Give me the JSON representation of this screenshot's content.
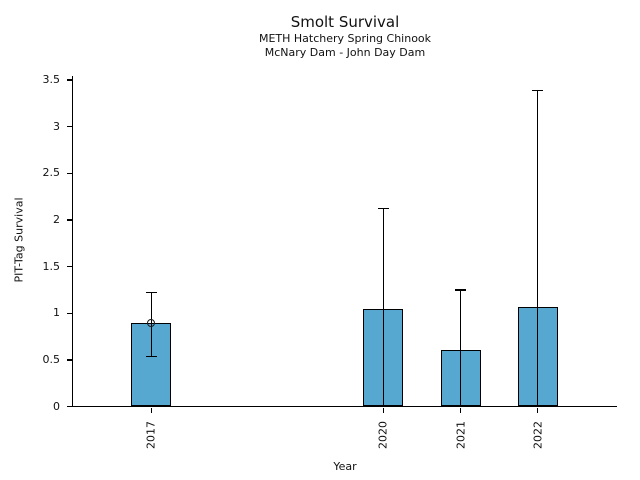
{
  "figure": {
    "title": "Smolt Survival",
    "subtitle_line1": "METH Hatchery Spring Chinook",
    "subtitle_line2": "McNary Dam - John Day Dam",
    "xlabel": "Year",
    "ylabel": "PIT-Tag Survival"
  },
  "chart_data": {
    "type": "bar",
    "title": "Smolt Survival",
    "subtitle": [
      "METH Hatchery Spring Chinook",
      "McNary Dam - John Day Dam"
    ],
    "xlabel": "Year",
    "ylabel": "PIT-Tag Survival",
    "categories": [
      "2017",
      "2020",
      "2021",
      "2022"
    ],
    "x_years": [
      2017,
      2020,
      2021,
      2022
    ],
    "values": [
      0.89,
      1.04,
      0.61,
      1.07
    ],
    "error_low": [
      0.54,
      0,
      0,
      0
    ],
    "error_high": [
      1.22,
      2.12,
      1.25,
      3.39
    ],
    "point_markers": [
      {
        "year": 2017,
        "value": 0.89,
        "style": "open-circle"
      }
    ],
    "ylim": [
      0,
      3.5
    ],
    "yticks": [
      0,
      0.5,
      1,
      1.5,
      2,
      2.5,
      3,
      3.5
    ],
    "ytick_labels": [
      "0",
      "0.5",
      "1",
      "1.5",
      "2",
      "2.5",
      "3",
      "3.5"
    ],
    "xlim_years": [
      2016,
      2023
    ],
    "grid": false,
    "legend": null,
    "bar_color": "#57A8D1",
    "bar_edge_color": "#000000",
    "error_color": "#000000"
  }
}
